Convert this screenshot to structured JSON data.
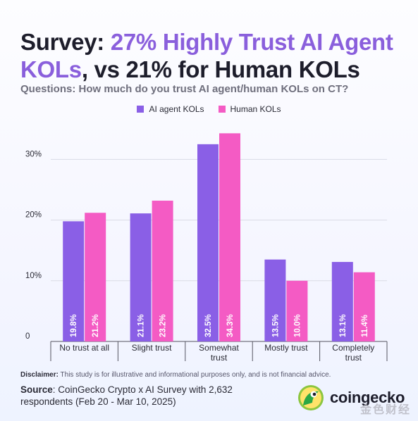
{
  "title": {
    "line1_prefix": "Survey: ",
    "line1_accent": "27% Highly Trust AI Agent",
    "line2_accent": "KOLs",
    "line2_suffix": ", vs 21% for Human KOLs"
  },
  "subtitle": "Questions: How much do you trust AI agent/human KOLs on CT?",
  "colors": {
    "ai": "#8a5fe6",
    "human": "#f45bc4",
    "accent": "#8a5fdc"
  },
  "chart_data": {
    "type": "bar",
    "categories": [
      "No trust at all",
      "Slight trust",
      "Somewhat\ntrust",
      "Mostly trust",
      "Completely\ntrust"
    ],
    "series": [
      {
        "name": "AI agent KOLs",
        "values": [
          19.8,
          21.1,
          32.5,
          13.5,
          13.1
        ],
        "labels": [
          "19.8%",
          "21.1%",
          "32.5%",
          "13.5%",
          "13.1%"
        ]
      },
      {
        "name": "Human KOLs",
        "values": [
          21.2,
          23.2,
          34.3,
          10.0,
          11.4
        ],
        "labels": [
          "21.2%",
          "23.2%",
          "34.3%",
          "10.0%",
          "11.4%"
        ]
      }
    ],
    "yticks": [
      0,
      10,
      20,
      30
    ],
    "yticklabels": [
      "0",
      "10%",
      "20%",
      "30%"
    ],
    "ylim": [
      0,
      36
    ],
    "grid": true,
    "legend": "top-center"
  },
  "disclaimer": {
    "label": "Disclaimer:",
    "text": " This study is for illustrative and informational purposes only, and is not financial advice."
  },
  "source": {
    "label": "Source",
    "text": ": CoinGecko Crypto x AI Survey with 2,632 respondents (Feb 20 - Mar 10, 2025)"
  },
  "logo": {
    "name": "coingecko"
  },
  "watermark": "金色财经"
}
